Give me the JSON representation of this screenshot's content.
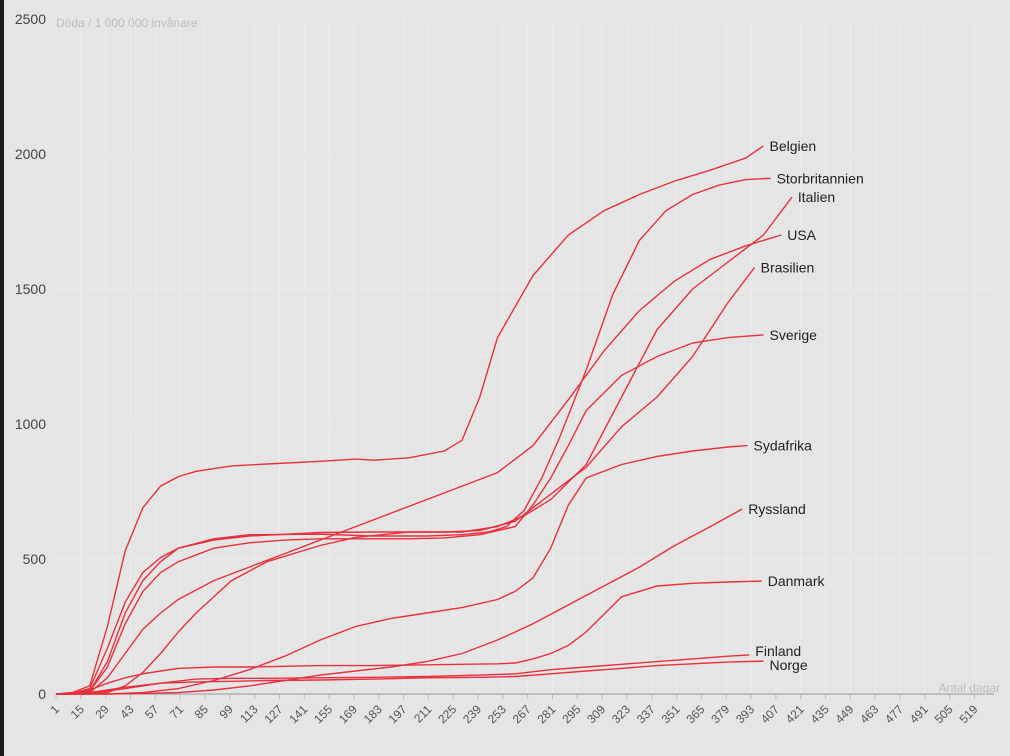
{
  "chart_data": {
    "type": "line",
    "ylabel": "Döda / 1 000 000 invånare",
    "xlabel": "Antal dagar",
    "ylim": [
      0,
      2500
    ],
    "xlim": [
      1,
      530
    ],
    "yticks": [
      "0",
      "500",
      "1000",
      "1500",
      "2000",
      "2500"
    ],
    "xticks": [
      "1",
      "15",
      "29",
      "43",
      "57",
      "71",
      "85",
      "99",
      "113",
      "127",
      "141",
      "155",
      "169",
      "183",
      "197",
      "211",
      "225",
      "239",
      "253",
      "267",
      "281",
      "295",
      "309",
      "323",
      "337",
      "351",
      "365",
      "379",
      "393",
      "407",
      "421",
      "435",
      "449",
      "463",
      "477",
      "491",
      "505",
      "519"
    ],
    "grid": true,
    "line_color": "#e8303c",
    "series": [
      {
        "name": "Belgien",
        "x": [
          1,
          10,
          20,
          30,
          40,
          50,
          60,
          70,
          80,
          100,
          120,
          150,
          170,
          180,
          200,
          220,
          230,
          240,
          250,
          270,
          290,
          310,
          330,
          350,
          370,
          390,
          400
        ],
        "values": [
          0,
          5,
          30,
          250,
          530,
          690,
          770,
          805,
          825,
          845,
          852,
          862,
          870,
          866,
          875,
          900,
          940,
          1100,
          1320,
          1550,
          1700,
          1790,
          1850,
          1900,
          1940,
          1985,
          2030
        ]
      },
      {
        "name": "Storbritannien",
        "x": [
          1,
          10,
          20,
          30,
          40,
          50,
          60,
          70,
          90,
          110,
          150,
          180,
          210,
          230,
          245,
          255,
          265,
          275,
          285,
          300,
          315,
          330,
          345,
          360,
          375,
          390,
          404
        ],
        "values": [
          0,
          2,
          10,
          120,
          300,
          420,
          490,
          540,
          575,
          590,
          592,
          585,
          585,
          590,
          600,
          620,
          680,
          800,
          950,
          1200,
          1480,
          1680,
          1790,
          1850,
          1885,
          1905,
          1910
        ]
      },
      {
        "name": "Italien",
        "x": [
          1,
          10,
          20,
          30,
          40,
          50,
          60,
          70,
          90,
          110,
          150,
          180,
          210,
          230,
          250,
          265,
          280,
          300,
          320,
          340,
          360,
          380,
          400,
          416
        ],
        "values": [
          0,
          2,
          20,
          170,
          340,
          450,
          505,
          540,
          570,
          585,
          598,
          600,
          600,
          600,
          620,
          660,
          720,
          850,
          1100,
          1350,
          1500,
          1600,
          1700,
          1840
        ]
      },
      {
        "name": "USA",
        "x": [
          1,
          10,
          20,
          30,
          40,
          50,
          60,
          70,
          90,
          110,
          130,
          150,
          170,
          190,
          210,
          230,
          250,
          270,
          290,
          310,
          330,
          350,
          370,
          390,
          410
        ],
        "values": [
          0,
          0,
          5,
          60,
          150,
          240,
          300,
          350,
          420,
          470,
          520,
          570,
          620,
          670,
          720,
          770,
          820,
          920,
          1090,
          1270,
          1420,
          1530,
          1610,
          1660,
          1700
        ]
      },
      {
        "name": "Brasilien",
        "x": [
          1,
          20,
          30,
          40,
          50,
          60,
          70,
          80,
          100,
          120,
          150,
          170,
          200,
          220,
          240,
          260,
          270,
          280,
          290,
          300,
          320,
          340,
          360,
          380,
          395
        ],
        "values": [
          0,
          0,
          5,
          30,
          80,
          150,
          230,
          300,
          420,
          490,
          550,
          580,
          600,
          600,
          605,
          640,
          690,
          740,
          790,
          840,
          990,
          1100,
          1250,
          1450,
          1580
        ]
      },
      {
        "name": "Sverige",
        "x": [
          1,
          10,
          20,
          30,
          40,
          50,
          60,
          70,
          90,
          110,
          130,
          150,
          170,
          200,
          220,
          240,
          260,
          270,
          280,
          290,
          300,
          320,
          340,
          360,
          380,
          400
        ],
        "values": [
          0,
          0,
          10,
          100,
          260,
          380,
          450,
          490,
          540,
          560,
          570,
          575,
          575,
          575,
          578,
          590,
          620,
          700,
          800,
          920,
          1050,
          1180,
          1250,
          1300,
          1320,
          1330
        ]
      },
      {
        "name": "Sydafrika",
        "x": [
          1,
          30,
          50,
          70,
          90,
          110,
          130,
          150,
          170,
          190,
          210,
          230,
          250,
          260,
          270,
          280,
          290,
          300,
          320,
          340,
          360,
          380,
          391
        ],
        "values": [
          0,
          0,
          5,
          20,
          50,
          90,
          140,
          200,
          250,
          280,
          300,
          320,
          350,
          380,
          430,
          540,
          700,
          800,
          850,
          880,
          900,
          915,
          920
        ]
      },
      {
        "name": "Ryssland",
        "x": [
          1,
          30,
          50,
          70,
          90,
          110,
          130,
          150,
          170,
          190,
          210,
          230,
          250,
          270,
          290,
          310,
          330,
          350,
          370,
          388
        ],
        "values": [
          0,
          0,
          2,
          5,
          15,
          30,
          50,
          70,
          85,
          100,
          120,
          150,
          200,
          260,
          330,
          400,
          470,
          550,
          620,
          685
        ]
      },
      {
        "name": "Danmark",
        "x": [
          1,
          10,
          20,
          30,
          40,
          50,
          60,
          70,
          90,
          110,
          150,
          180,
          210,
          230,
          250,
          260,
          270,
          280,
          290,
          300,
          320,
          340,
          360,
          380,
          399
        ],
        "values": [
          0,
          3,
          15,
          40,
          60,
          75,
          85,
          95,
          100,
          100,
          105,
          105,
          108,
          110,
          112,
          115,
          130,
          150,
          180,
          230,
          360,
          400,
          410,
          415,
          418
        ]
      },
      {
        "name": "Finland",
        "x": [
          1,
          20,
          40,
          60,
          80,
          100,
          120,
          150,
          180,
          210,
          240,
          260,
          280,
          300,
          320,
          340,
          360,
          380,
          392
        ],
        "values": [
          0,
          2,
          20,
          40,
          55,
          58,
          58,
          60,
          62,
          65,
          70,
          75,
          90,
          100,
          110,
          120,
          130,
          140,
          145
        ]
      },
      {
        "name": "Norge",
        "x": [
          1,
          20,
          40,
          60,
          80,
          100,
          120,
          150,
          180,
          210,
          240,
          260,
          280,
          300,
          320,
          340,
          360,
          380,
          400
        ],
        "values": [
          0,
          5,
          25,
          40,
          45,
          47,
          50,
          52,
          55,
          60,
          62,
          65,
          75,
          85,
          95,
          105,
          112,
          118,
          122
        ]
      }
    ]
  }
}
